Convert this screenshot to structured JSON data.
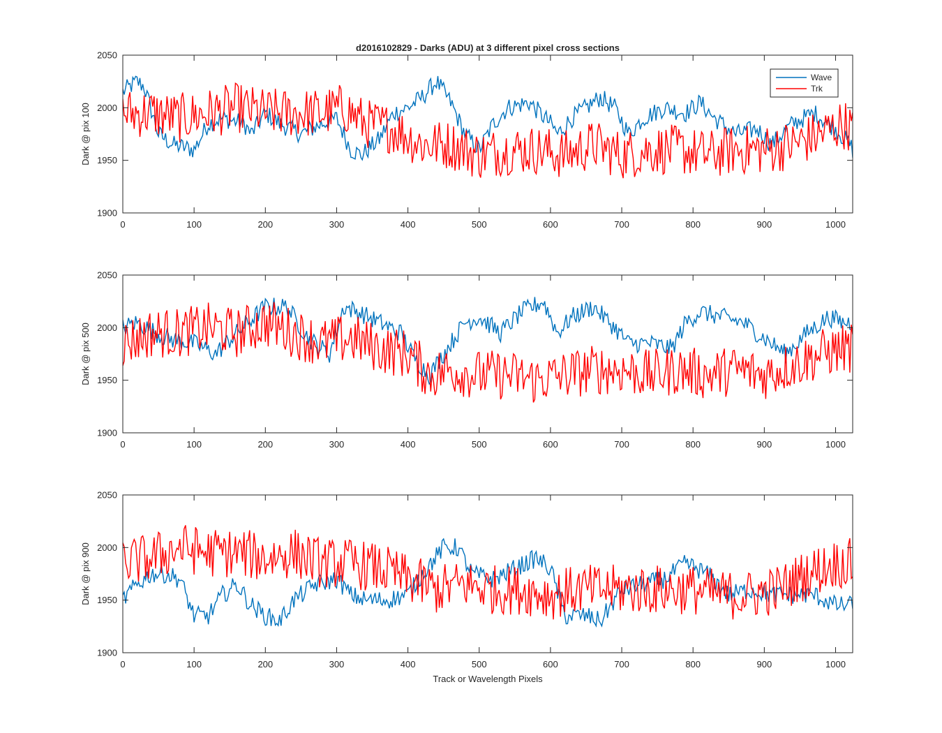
{
  "chart_data": {
    "type": "line",
    "title": "d2016102829 - Darks (ADU) at 3 different pixel cross sections",
    "xlabel": "Track or Wavelength Pixels",
    "xlim": [
      0,
      1024
    ],
    "xticks": [
      0,
      100,
      200,
      300,
      400,
      500,
      600,
      700,
      800,
      900,
      1000
    ],
    "legend": {
      "placement": "top-right",
      "entries": [
        "Wave",
        "Trk"
      ]
    },
    "series_colors": {
      "Wave": "#0072bd",
      "Trk": "#ff0000"
    },
    "panels": [
      {
        "ylabel": "Dark @ pix 100",
        "ylim": [
          1900,
          2050
        ],
        "yticks": [
          1900,
          1950,
          2000,
          2050
        ],
        "series": [
          {
            "name": "Wave",
            "x": [
              0,
              10,
              20,
              30,
              50,
              70,
              100,
              120,
              140,
              170,
              180,
              200,
              220,
              250,
              280,
              300,
              320,
              335,
              360,
              380,
              400,
              420,
              440,
              460,
              480,
              500,
              520,
              540,
              570,
              600,
              610,
              630,
              650,
              670,
              690,
              710,
              730,
              760,
              790,
              810,
              830,
              860,
              890,
              910,
              940,
              970,
              1000,
              1020,
              1024
            ],
            "y": [
              2015,
              2020,
              2025,
              2020,
              1975,
              1965,
              1960,
              1985,
              1990,
              1985,
              1975,
              1995,
              1985,
              1975,
              1985,
              1990,
              1960,
              1955,
              1970,
              1995,
              2000,
              2010,
              2025,
              2005,
              1975,
              1960,
              1985,
              2000,
              2005,
              1985,
              1975,
              1990,
              2000,
              2010,
              2000,
              1975,
              1990,
              2000,
              1995,
              2005,
              1990,
              1975,
              1980,
              1965,
              1985,
              1995,
              1980,
              1965,
              1960
            ]
          },
          {
            "name": "Trk",
            "x": [
              0,
              40,
              80,
              120,
              160,
              200,
              240,
              280,
              310,
              340,
              380,
              420,
              460,
              500,
              540,
              580,
              620,
              660,
              700,
              740,
              780,
              820,
              860,
              900,
              940,
              980,
              1010,
              1024
            ],
            "y": [
              1995,
              1995,
              1990,
              1995,
              2000,
              1995,
              1995,
              1995,
              2000,
              1985,
              1980,
              1965,
              1965,
              1955,
              1960,
              1960,
              1955,
              1965,
              1955,
              1960,
              1960,
              1955,
              1960,
              1960,
              1965,
              1975,
              1985,
              1980
            ]
          }
        ]
      },
      {
        "ylabel": "Dark @ pix 500",
        "ylim": [
          1900,
          2050
        ],
        "yticks": [
          1900,
          1950,
          2000,
          2050
        ],
        "series": [
          {
            "name": "Wave",
            "x": [
              0,
              20,
              60,
              100,
              130,
              160,
              200,
              230,
              260,
              290,
              310,
              330,
              360,
              390,
              410,
              430,
              460,
              480,
              500,
              530,
              560,
              590,
              610,
              630,
              660,
              690,
              710,
              740,
              770,
              790,
              810,
              840,
              870,
              900,
              930,
              960,
              990,
              1010,
              1024
            ],
            "y": [
              2000,
              2005,
              1990,
              1985,
              1975,
              1995,
              2020,
              2020,
              1990,
              1975,
              2020,
              2015,
              2005,
              1995,
              1970,
              1955,
              1985,
              2005,
              2010,
              1995,
              2015,
              2025,
              1995,
              2010,
              2020,
              2000,
              1985,
              1985,
              1980,
              2005,
              2015,
              2010,
              2005,
              1990,
              1975,
              1995,
              2010,
              2005,
              2005
            ]
          },
          {
            "name": "Trk",
            "x": [
              0,
              40,
              80,
              120,
              160,
              200,
              240,
              280,
              320,
              360,
              400,
              430,
              460,
              500,
              540,
              580,
              620,
              660,
              700,
              740,
              780,
              820,
              860,
              900,
              940,
              980,
              1010,
              1024
            ],
            "y": [
              1985,
              1995,
              1995,
              2000,
              1995,
              2005,
              1995,
              1985,
              1990,
              1980,
              1975,
              1955,
              1960,
              1955,
              1955,
              1950,
              1955,
              1960,
              1960,
              1955,
              1960,
              1955,
              1960,
              1955,
              1965,
              1975,
              1980,
              1980
            ]
          }
        ]
      },
      {
        "ylabel": "Dark @ pix 900",
        "ylim": [
          1900,
          2050
        ],
        "yticks": [
          1900,
          1950,
          2000,
          2050
        ],
        "series": [
          {
            "name": "Wave",
            "x": [
              0,
              20,
              40,
              60,
              80,
              100,
              120,
              140,
              160,
              180,
              200,
              220,
              240,
              270,
              300,
              320,
              340,
              370,
              400,
              420,
              450,
              470,
              490,
              520,
              550,
              580,
              600,
              620,
              650,
              670,
              700,
              730,
              760,
              790,
              820,
              850,
              880,
              910,
              940,
              970,
              1000,
              1020,
              1024
            ],
            "y": [
              1950,
              1965,
              1975,
              1975,
              1970,
              1935,
              1935,
              1955,
              1965,
              1945,
              1935,
              1930,
              1950,
              1965,
              1970,
              1955,
              1950,
              1950,
              1955,
              1975,
              2000,
              2000,
              1975,
              1970,
              1980,
              1990,
              1980,
              1935,
              1935,
              1930,
              1960,
              1965,
              1970,
              1985,
              1975,
              1955,
              1960,
              1955,
              1955,
              1955,
              1945,
              1945,
              1950
            ]
          },
          {
            "name": "Trk",
            "x": [
              0,
              40,
              80,
              120,
              160,
              200,
              240,
              280,
              320,
              360,
              400,
              440,
              480,
              520,
              560,
              600,
              640,
              680,
              720,
              760,
              800,
              840,
              880,
              920,
              960,
              1000,
              1024
            ],
            "y": [
              1985,
              1990,
              2000,
              1995,
              1995,
              1990,
              1995,
              1985,
              1985,
              1980,
              1970,
              1960,
              1965,
              1960,
              1960,
              1955,
              1960,
              1960,
              1960,
              1960,
              1960,
              1955,
              1955,
              1960,
              1975,
              1985,
              1985
            ]
          }
        ]
      }
    ]
  }
}
